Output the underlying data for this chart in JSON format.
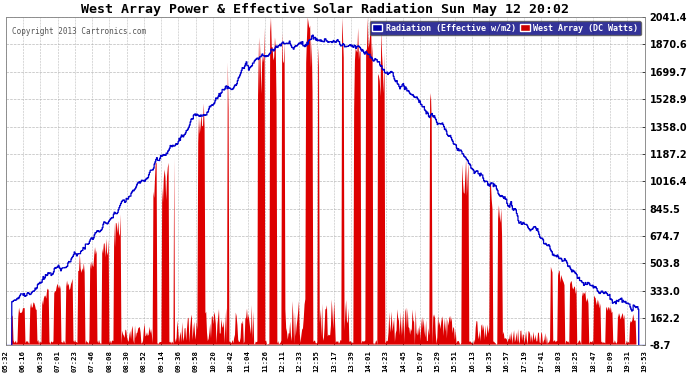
{
  "title": "West Array Power & Effective Solar Radiation Sun May 12 20:02",
  "copyright": "Copyright 2013 Cartronics.com",
  "legend_labels": [
    "Radiation (Effective w/m2)",
    "West Array (DC Watts)"
  ],
  "bg_color": "#ffffff",
  "plot_bg_color": "#ffffff",
  "grid_color": "#aaaaaa",
  "title_color": "#000000",
  "tick_color": "#000000",
  "y_min": -8.7,
  "y_max": 2041.4,
  "y_ticks": [
    -8.7,
    162.2,
    333.0,
    503.8,
    674.7,
    845.5,
    1016.4,
    1187.2,
    1358.0,
    1528.9,
    1699.7,
    1870.6,
    2041.4
  ],
  "x_tick_labels": [
    "05:32",
    "06:16",
    "06:39",
    "07:01",
    "07:23",
    "07:46",
    "08:08",
    "08:30",
    "08:52",
    "09:14",
    "09:36",
    "09:58",
    "10:20",
    "10:42",
    "11:04",
    "11:26",
    "12:11",
    "12:33",
    "12:55",
    "13:17",
    "13:39",
    "14:01",
    "14:23",
    "14:45",
    "15:07",
    "15:29",
    "15:51",
    "16:13",
    "16:35",
    "16:57",
    "17:19",
    "17:41",
    "18:03",
    "18:25",
    "18:47",
    "19:09",
    "19:31",
    "19:53"
  ],
  "n_points": 800,
  "radiation_color": "#0000cc",
  "power_color": "#dd0000",
  "legend_rad_bg": "#0000aa",
  "legend_pwr_bg": "#cc0000"
}
